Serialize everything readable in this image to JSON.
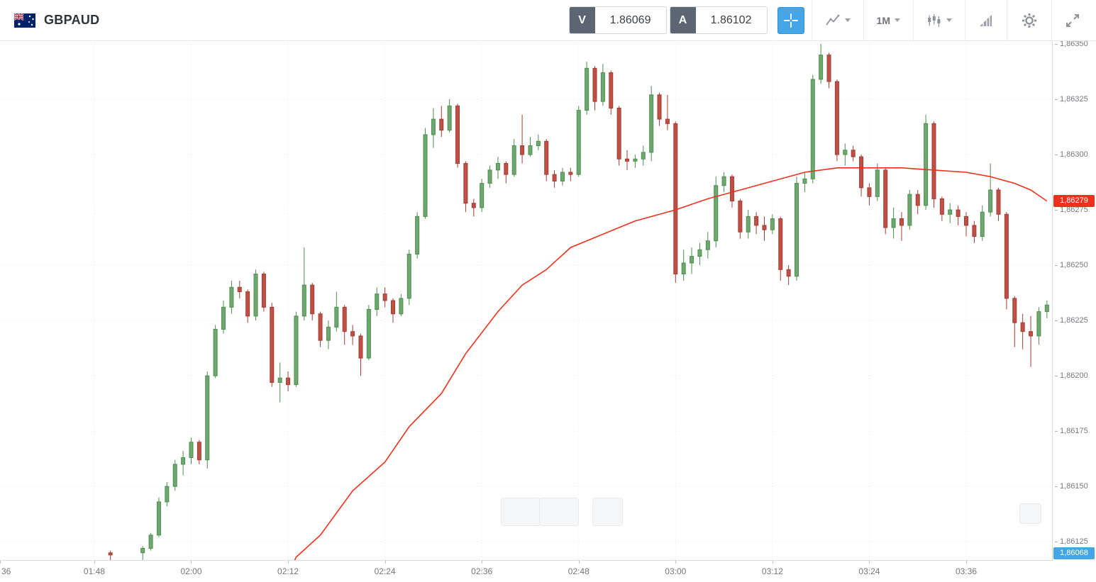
{
  "toolbar": {
    "symbol": "GBPAUD",
    "sell": {
      "label": "V",
      "value": "1.86069"
    },
    "buy": {
      "label": "A",
      "value": "1.86102"
    },
    "timeframe": "1M",
    "icons": [
      "gbpaud-flag-icon",
      "crosshair-icon",
      "chart-type-icon",
      "chevron-down-icon",
      "candlestick-indicator-icon",
      "signal-wedge-icon",
      "gear-icon",
      "fullscreen-expand-icon"
    ]
  },
  "colors": {
    "accent_blue": "#45a5e6",
    "badge_red": "#ef311c",
    "badge_blue": "#45a5e6",
    "candle_up_fill": "#6ea76f",
    "candle_up_stroke": "#4d8f4e",
    "candle_down_fill": "#c05045",
    "candle_down_stroke": "#a33d33",
    "ma_line": "#ef311c",
    "grid": "#e8ebed"
  },
  "chart_data": {
    "type": "candlestick",
    "title": "GBPAUD 1M",
    "legend_position": "none",
    "grid": "dotted",
    "columns": [
      "time",
      "open",
      "high",
      "low",
      "close"
    ],
    "candles": [
      [
        "01:50",
        1.8612,
        1.86121,
        1.86112,
        1.86119
      ],
      [
        "01:54",
        1.8612,
        1.86123,
        1.86116,
        1.86122
      ],
      [
        "01:55",
        1.86122,
        1.86129,
        1.86121,
        1.86128
      ],
      [
        "01:56",
        1.86128,
        1.86145,
        1.86127,
        1.86143
      ],
      [
        "01:57",
        1.86143,
        1.86152,
        1.86141,
        1.8615
      ],
      [
        "01:58",
        1.8615,
        1.86162,
        1.86148,
        1.8616
      ],
      [
        "01:59",
        1.8616,
        1.86166,
        1.86155,
        1.86163
      ],
      [
        "02:00",
        1.86163,
        1.86172,
        1.8616,
        1.8617
      ],
      [
        "02:01",
        1.8617,
        1.86171,
        1.8616,
        1.86162
      ],
      [
        "02:02",
        1.86162,
        1.86202,
        1.86158,
        1.862
      ],
      [
        "02:03",
        1.862,
        1.86223,
        1.86199,
        1.86221
      ],
      [
        "02:04",
        1.86221,
        1.86234,
        1.86219,
        1.86231
      ],
      [
        "02:05",
        1.86231,
        1.86243,
        1.86228,
        1.8624
      ],
      [
        "02:06",
        1.8624,
        1.86243,
        1.86235,
        1.86238
      ],
      [
        "02:07",
        1.86238,
        1.86239,
        1.86224,
        1.86227
      ],
      [
        "02:08",
        1.86227,
        1.86248,
        1.86225,
        1.86246
      ],
      [
        "02:09",
        1.86246,
        1.86247,
        1.86229,
        1.86231
      ],
      [
        "02:10",
        1.86231,
        1.86233,
        1.86195,
        1.86197
      ],
      [
        "02:11",
        1.86197,
        1.86206,
        1.86188,
        1.86199
      ],
      [
        "02:12",
        1.86199,
        1.86202,
        1.86193,
        1.86196
      ],
      [
        "02:13",
        1.86196,
        1.86229,
        1.86195,
        1.86227
      ],
      [
        "02:14",
        1.86227,
        1.86258,
        1.86225,
        1.86241
      ],
      [
        "02:15",
        1.86241,
        1.86242,
        1.86225,
        1.86228
      ],
      [
        "02:16",
        1.86228,
        1.86229,
        1.86213,
        1.86216
      ],
      [
        "02:17",
        1.86216,
        1.86225,
        1.86212,
        1.86222
      ],
      [
        "02:18",
        1.86222,
        1.86238,
        1.8622,
        1.86231
      ],
      [
        "02:19",
        1.86231,
        1.86232,
        1.86214,
        1.8622
      ],
      [
        "02:20",
        1.8622,
        1.86223,
        1.86214,
        1.86218
      ],
      [
        "02:21",
        1.86218,
        1.86219,
        1.862,
        1.86208
      ],
      [
        "02:22",
        1.86208,
        1.86232,
        1.86207,
        1.8623
      ],
      [
        "02:23",
        1.8623,
        1.8624,
        1.86227,
        1.86237
      ],
      [
        "02:24",
        1.86237,
        1.8624,
        1.86231,
        1.86234
      ],
      [
        "02:25",
        1.86234,
        1.86235,
        1.86224,
        1.86228
      ],
      [
        "02:26",
        1.86228,
        1.86237,
        1.86227,
        1.86235
      ],
      [
        "02:27",
        1.86235,
        1.86257,
        1.86232,
        1.86255
      ],
      [
        "02:28",
        1.86255,
        1.86274,
        1.86253,
        1.86272
      ],
      [
        "02:29",
        1.86272,
        1.86312,
        1.86271,
        1.86309
      ],
      [
        "02:30",
        1.86309,
        1.86321,
        1.86303,
        1.86316
      ],
      [
        "02:31",
        1.86316,
        1.86322,
        1.86308,
        1.86311
      ],
      [
        "02:32",
        1.86311,
        1.86325,
        1.8631,
        1.86322
      ],
      [
        "02:33",
        1.86322,
        1.86323,
        1.86294,
        1.86296
      ],
      [
        "02:34",
        1.86296,
        1.86297,
        1.86274,
        1.86278
      ],
      [
        "02:35",
        1.86278,
        1.8628,
        1.86272,
        1.86276
      ],
      [
        "02:36",
        1.86276,
        1.86289,
        1.86274,
        1.86287
      ],
      [
        "02:37",
        1.86287,
        1.86295,
        1.86285,
        1.86293
      ],
      [
        "02:38",
        1.86293,
        1.86299,
        1.86289,
        1.86296
      ],
      [
        "02:39",
        1.86296,
        1.86297,
        1.86287,
        1.86291
      ],
      [
        "02:40",
        1.86291,
        1.86307,
        1.8629,
        1.86304
      ],
      [
        "02:41",
        1.86304,
        1.86318,
        1.86296,
        1.863
      ],
      [
        "02:42",
        1.863,
        1.86308,
        1.86299,
        1.86304
      ],
      [
        "02:43",
        1.86304,
        1.86309,
        1.86302,
        1.86306
      ],
      [
        "02:44",
        1.86306,
        1.86307,
        1.86288,
        1.86291
      ],
      [
        "02:45",
        1.86291,
        1.86293,
        1.86285,
        1.86288
      ],
      [
        "02:46",
        1.86288,
        1.86294,
        1.86286,
        1.86292
      ],
      [
        "02:47",
        1.86292,
        1.86294,
        1.86288,
        1.86291
      ],
      [
        "02:48",
        1.86291,
        1.86322,
        1.8629,
        1.8632
      ],
      [
        "02:49",
        1.8632,
        1.86342,
        1.86318,
        1.86339
      ],
      [
        "02:50",
        1.86339,
        1.8634,
        1.8632,
        1.86324
      ],
      [
        "02:51",
        1.86324,
        1.86341,
        1.86322,
        1.86337
      ],
      [
        "02:52",
        1.86337,
        1.86338,
        1.86318,
        1.86321
      ],
      [
        "02:53",
        1.86321,
        1.86322,
        1.86295,
        1.86298
      ],
      [
        "02:54",
        1.86298,
        1.86302,
        1.86293,
        1.86297
      ],
      [
        "02:55",
        1.86297,
        1.863,
        1.86294,
        1.86298
      ],
      [
        "02:56",
        1.86298,
        1.86304,
        1.86295,
        1.86301
      ],
      [
        "02:57",
        1.86301,
        1.86331,
        1.86297,
        1.86327
      ],
      [
        "02:58",
        1.86327,
        1.86328,
        1.86313,
        1.86316
      ],
      [
        "02:59",
        1.86316,
        1.86327,
        1.86311,
        1.86314
      ],
      [
        "03:00",
        1.86314,
        1.86315,
        1.86242,
        1.86246
      ],
      [
        "03:01",
        1.86246,
        1.86257,
        1.86243,
        1.86251
      ],
      [
        "03:02",
        1.86251,
        1.86258,
        1.86246,
        1.86254
      ],
      [
        "03:03",
        1.86254,
        1.8626,
        1.8625,
        1.86257
      ],
      [
        "03:04",
        1.86257,
        1.86265,
        1.86253,
        1.86261
      ],
      [
        "03:05",
        1.86261,
        1.8629,
        1.86258,
        1.86286
      ],
      [
        "03:06",
        1.86286,
        1.86292,
        1.86283,
        1.8629
      ],
      [
        "03:07",
        1.8629,
        1.86291,
        1.86276,
        1.86279
      ],
      [
        "03:08",
        1.86279,
        1.8628,
        1.86262,
        1.86265
      ],
      [
        "03:09",
        1.86265,
        1.86275,
        1.86262,
        1.86272
      ],
      [
        "03:10",
        1.86272,
        1.86274,
        1.86264,
        1.86268
      ],
      [
        "03:11",
        1.86268,
        1.86272,
        1.86261,
        1.86266
      ],
      [
        "03:12",
        1.86266,
        1.86273,
        1.86264,
        1.86271
      ],
      [
        "03:13",
        1.86271,
        1.86272,
        1.86243,
        1.86248
      ],
      [
        "03:14",
        1.86248,
        1.8625,
        1.86241,
        1.86245
      ],
      [
        "03:15",
        1.86245,
        1.8629,
        1.86243,
        1.86287
      ],
      [
        "03:16",
        1.86287,
        1.86292,
        1.86283,
        1.86289
      ],
      [
        "03:17",
        1.86289,
        1.86336,
        1.86287,
        1.86334
      ],
      [
        "03:18",
        1.86334,
        1.8635,
        1.86332,
        1.86345
      ],
      [
        "03:19",
        1.86345,
        1.86346,
        1.8633,
        1.86333
      ],
      [
        "03:20",
        1.86333,
        1.86334,
        1.86297,
        1.863
      ],
      [
        "03:21",
        1.863,
        1.86305,
        1.86295,
        1.86302
      ],
      [
        "03:22",
        1.86302,
        1.86304,
        1.86297,
        1.86299
      ],
      [
        "03:23",
        1.86299,
        1.863,
        1.86281,
        1.86285
      ],
      [
        "03:24",
        1.86285,
        1.86287,
        1.86277,
        1.86281
      ],
      [
        "03:25",
        1.86281,
        1.86296,
        1.86279,
        1.86293
      ],
      [
        "03:26",
        1.86293,
        1.86294,
        1.86264,
        1.86267
      ],
      [
        "03:27",
        1.86267,
        1.86276,
        1.86262,
        1.86271
      ],
      [
        "03:28",
        1.86271,
        1.86274,
        1.86261,
        1.86268
      ],
      [
        "03:29",
        1.86268,
        1.86284,
        1.86266,
        1.86282
      ],
      [
        "03:30",
        1.86282,
        1.86284,
        1.86273,
        1.86277
      ],
      [
        "03:31",
        1.86277,
        1.86318,
        1.86275,
        1.86314
      ],
      [
        "03:32",
        1.86314,
        1.86315,
        1.86276,
        1.8628
      ],
      [
        "03:33",
        1.8628,
        1.86281,
        1.8627,
        1.86273
      ],
      [
        "03:34",
        1.86273,
        1.86278,
        1.86269,
        1.86275
      ],
      [
        "03:35",
        1.86275,
        1.86277,
        1.86268,
        1.86272
      ],
      [
        "03:36",
        1.86272,
        1.86274,
        1.86263,
        1.86268
      ],
      [
        "03:37",
        1.86268,
        1.8627,
        1.8626,
        1.86263
      ],
      [
        "03:38",
        1.86263,
        1.86277,
        1.86261,
        1.86274
      ],
      [
        "03:39",
        1.86274,
        1.86296,
        1.86272,
        1.86284
      ],
      [
        "03:40",
        1.86284,
        1.86285,
        1.8627,
        1.86273
      ],
      [
        "03:41",
        1.86273,
        1.86274,
        1.8623,
        1.86235
      ],
      [
        "03:42",
        1.86235,
        1.86236,
        1.86213,
        1.86224
      ],
      [
        "03:43",
        1.86224,
        1.86228,
        1.86212,
        1.8622
      ],
      [
        "03:44",
        1.8622,
        1.86227,
        1.86204,
        1.86218
      ],
      [
        "03:45",
        1.86218,
        1.86231,
        1.86214,
        1.86229
      ],
      [
        "03:46",
        1.86229,
        1.86234,
        1.86226,
        1.86232
      ]
    ],
    "overlays": [
      {
        "name": "moving-average",
        "color": "#ef311c",
        "points": [
          [
            "02:12",
            1.8611
          ],
          [
            "02:13",
            1.86118
          ],
          [
            "02:16",
            1.86128
          ],
          [
            "02:20",
            1.86148
          ],
          [
            "02:24",
            1.86161
          ],
          [
            "02:27",
            1.86177
          ],
          [
            "02:31",
            1.86192
          ],
          [
            "02:34",
            1.8621
          ],
          [
            "02:38",
            1.86229
          ],
          [
            "02:41",
            1.86241
          ],
          [
            "02:44",
            1.86248
          ],
          [
            "02:47",
            1.86258
          ],
          [
            "02:51",
            1.86264
          ],
          [
            "02:55",
            1.8627
          ],
          [
            "03:00",
            1.86275
          ],
          [
            "03:04",
            1.8628
          ],
          [
            "03:08",
            1.86284
          ],
          [
            "03:12",
            1.86288
          ],
          [
            "03:16",
            1.86292
          ],
          [
            "03:20",
            1.86294
          ],
          [
            "03:24",
            1.86294
          ],
          [
            "03:28",
            1.86294
          ],
          [
            "03:32",
            1.86293
          ],
          [
            "03:36",
            1.86292
          ],
          [
            "03:39",
            1.8629
          ],
          [
            "03:42",
            1.86287
          ],
          [
            "03:44",
            1.86284
          ],
          [
            "03:46",
            1.86279
          ]
        ]
      }
    ],
    "y_axis": {
      "top_price": 1.863516,
      "bottom_price": 1.861164,
      "ticks": [
        {
          "value": 1.8635,
          "label": "1,86350"
        },
        {
          "value": 1.86325,
          "label": "1,86325"
        },
        {
          "value": 1.863,
          "label": "1,86300"
        },
        {
          "value": 1.86275,
          "label": "1,86275"
        },
        {
          "value": 1.8625,
          "label": "1,86250"
        },
        {
          "value": 1.86225,
          "label": "1,86225"
        },
        {
          "value": 1.862,
          "label": "1,86200"
        },
        {
          "value": 1.86175,
          "label": "1,86175"
        },
        {
          "value": 1.8615,
          "label": "1,86150"
        },
        {
          "value": 1.86125,
          "label": "1,86125"
        }
      ]
    },
    "x_axis": {
      "start_min": 96.32,
      "end_min": 226.72,
      "ticks": [
        {
          "time": "01:36",
          "label": "36"
        },
        {
          "time": "01:48",
          "label": "01:48"
        },
        {
          "time": "02:00",
          "label": "02:00"
        },
        {
          "time": "02:12",
          "label": "02:12"
        },
        {
          "time": "02:24",
          "label": "02:24"
        },
        {
          "time": "02:36",
          "label": "02:36"
        },
        {
          "time": "02:48",
          "label": "02:48"
        },
        {
          "time": "03:00",
          "label": "03:00"
        },
        {
          "time": "03:12",
          "label": "03:12"
        },
        {
          "time": "03:24",
          "label": "03:24"
        },
        {
          "time": "03:36",
          "label": "03:36"
        }
      ]
    },
    "price_markers": [
      {
        "value": 1.86279,
        "label": "1,86279",
        "color": "#ef311c"
      },
      {
        "value": 1.86068,
        "label": "1,86068",
        "color": "#45a5e6"
      }
    ]
  }
}
